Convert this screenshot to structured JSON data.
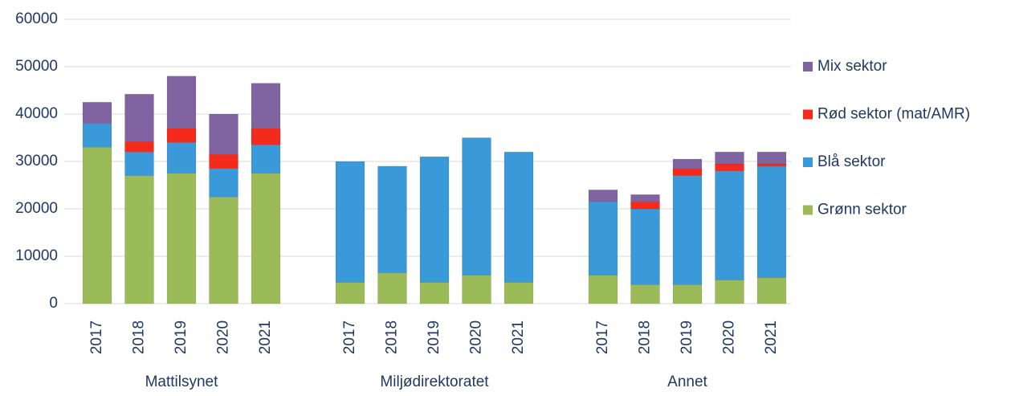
{
  "chart_data": {
    "type": "stacked_bar",
    "groups": [
      {
        "name": "Mattilsynet",
        "categories": [
          "2017",
          "2018",
          "2019",
          "2020",
          "2021"
        ]
      },
      {
        "name": "Miljødirektoratet",
        "categories": [
          "2017",
          "2018",
          "2019",
          "2020",
          "2021"
        ]
      },
      {
        "name": "Annet",
        "categories": [
          "2017",
          "2018",
          "2019",
          "2020",
          "2021"
        ]
      }
    ],
    "series": [
      {
        "name": "Grønn sektor",
        "color": "#9bbb59",
        "values": [
          33000,
          27000,
          27500,
          22500,
          27500,
          4500,
          6500,
          4500,
          6000,
          4500,
          6000,
          4000,
          4000,
          5000,
          5500
        ]
      },
      {
        "name": "Blå sektor",
        "color": "#3a9ad9",
        "values": [
          5000,
          5000,
          6500,
          6000,
          6000,
          25500,
          22500,
          26500,
          29000,
          27500,
          15500,
          16000,
          23000,
          23000,
          23500
        ]
      },
      {
        "name": "Rød sektor (mat/AMR)",
        "color": "#f32a1c",
        "values": [
          0,
          2200,
          3000,
          3000,
          3500,
          0,
          0,
          0,
          0,
          0,
          0,
          1500,
          1500,
          1500,
          500
        ]
      },
      {
        "name": "Mix sektor",
        "color": "#8064a2",
        "values": [
          4500,
          10000,
          11000,
          8500,
          9500,
          0,
          0,
          0,
          0,
          0,
          2500,
          1500,
          2000,
          2500,
          2500
        ]
      }
    ],
    "ylim": [
      0,
      60000
    ],
    "yticks": [
      0,
      10000,
      20000,
      30000,
      40000,
      50000,
      60000
    ],
    "grid": true,
    "legend": "right"
  }
}
